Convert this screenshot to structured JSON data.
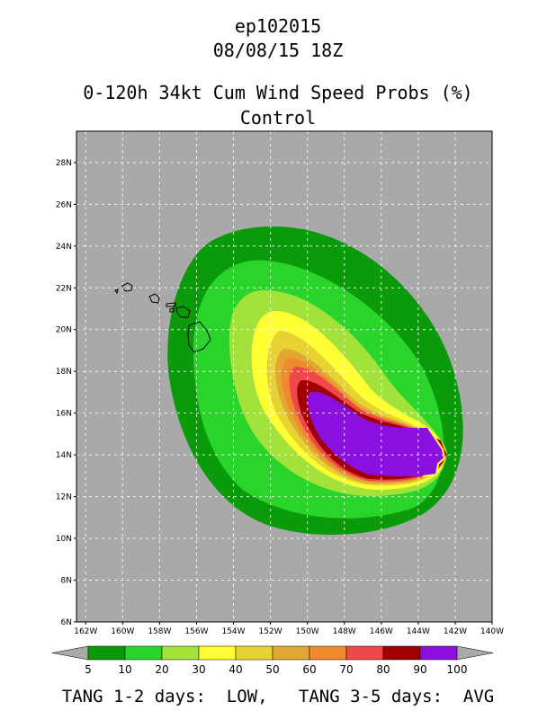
{
  "header": {
    "line1": "ep102015",
    "line2": "08/08/15 18Z",
    "line3": "0-120h 34kt Cum Wind Speed Probs (%)",
    "line4": "Control"
  },
  "map": {
    "lat_labels": [
      "28N",
      "26N",
      "24N",
      "22N",
      "20N",
      "18N",
      "16N",
      "14N",
      "12N",
      "10N",
      "8N",
      "6N"
    ],
    "lon_labels": [
      "162W",
      "160W",
      "158W",
      "156W",
      "154W",
      "152W",
      "150W",
      "148W",
      "146W",
      "144W",
      "142W",
      "140W"
    ],
    "lat_range": [
      6,
      29.5
    ],
    "lon_range": [
      -162.5,
      -140
    ],
    "background_color": "#a9a9a9"
  },
  "colorbar": {
    "labels": [
      "5",
      "10",
      "20",
      "30",
      "40",
      "50",
      "60",
      "70",
      "80",
      "90",
      "100"
    ],
    "colors": [
      "#0a9a0a",
      "#2ad42a",
      "#a3e23a",
      "#ffff33",
      "#e6d233",
      "#e0a832",
      "#ef8a2e",
      "#f04848",
      "#a00000",
      "#8a10e0"
    ]
  },
  "footer": {
    "text": "TANG 1-2 days:  LOW,   TANG 3-5 days:  AVG"
  }
}
